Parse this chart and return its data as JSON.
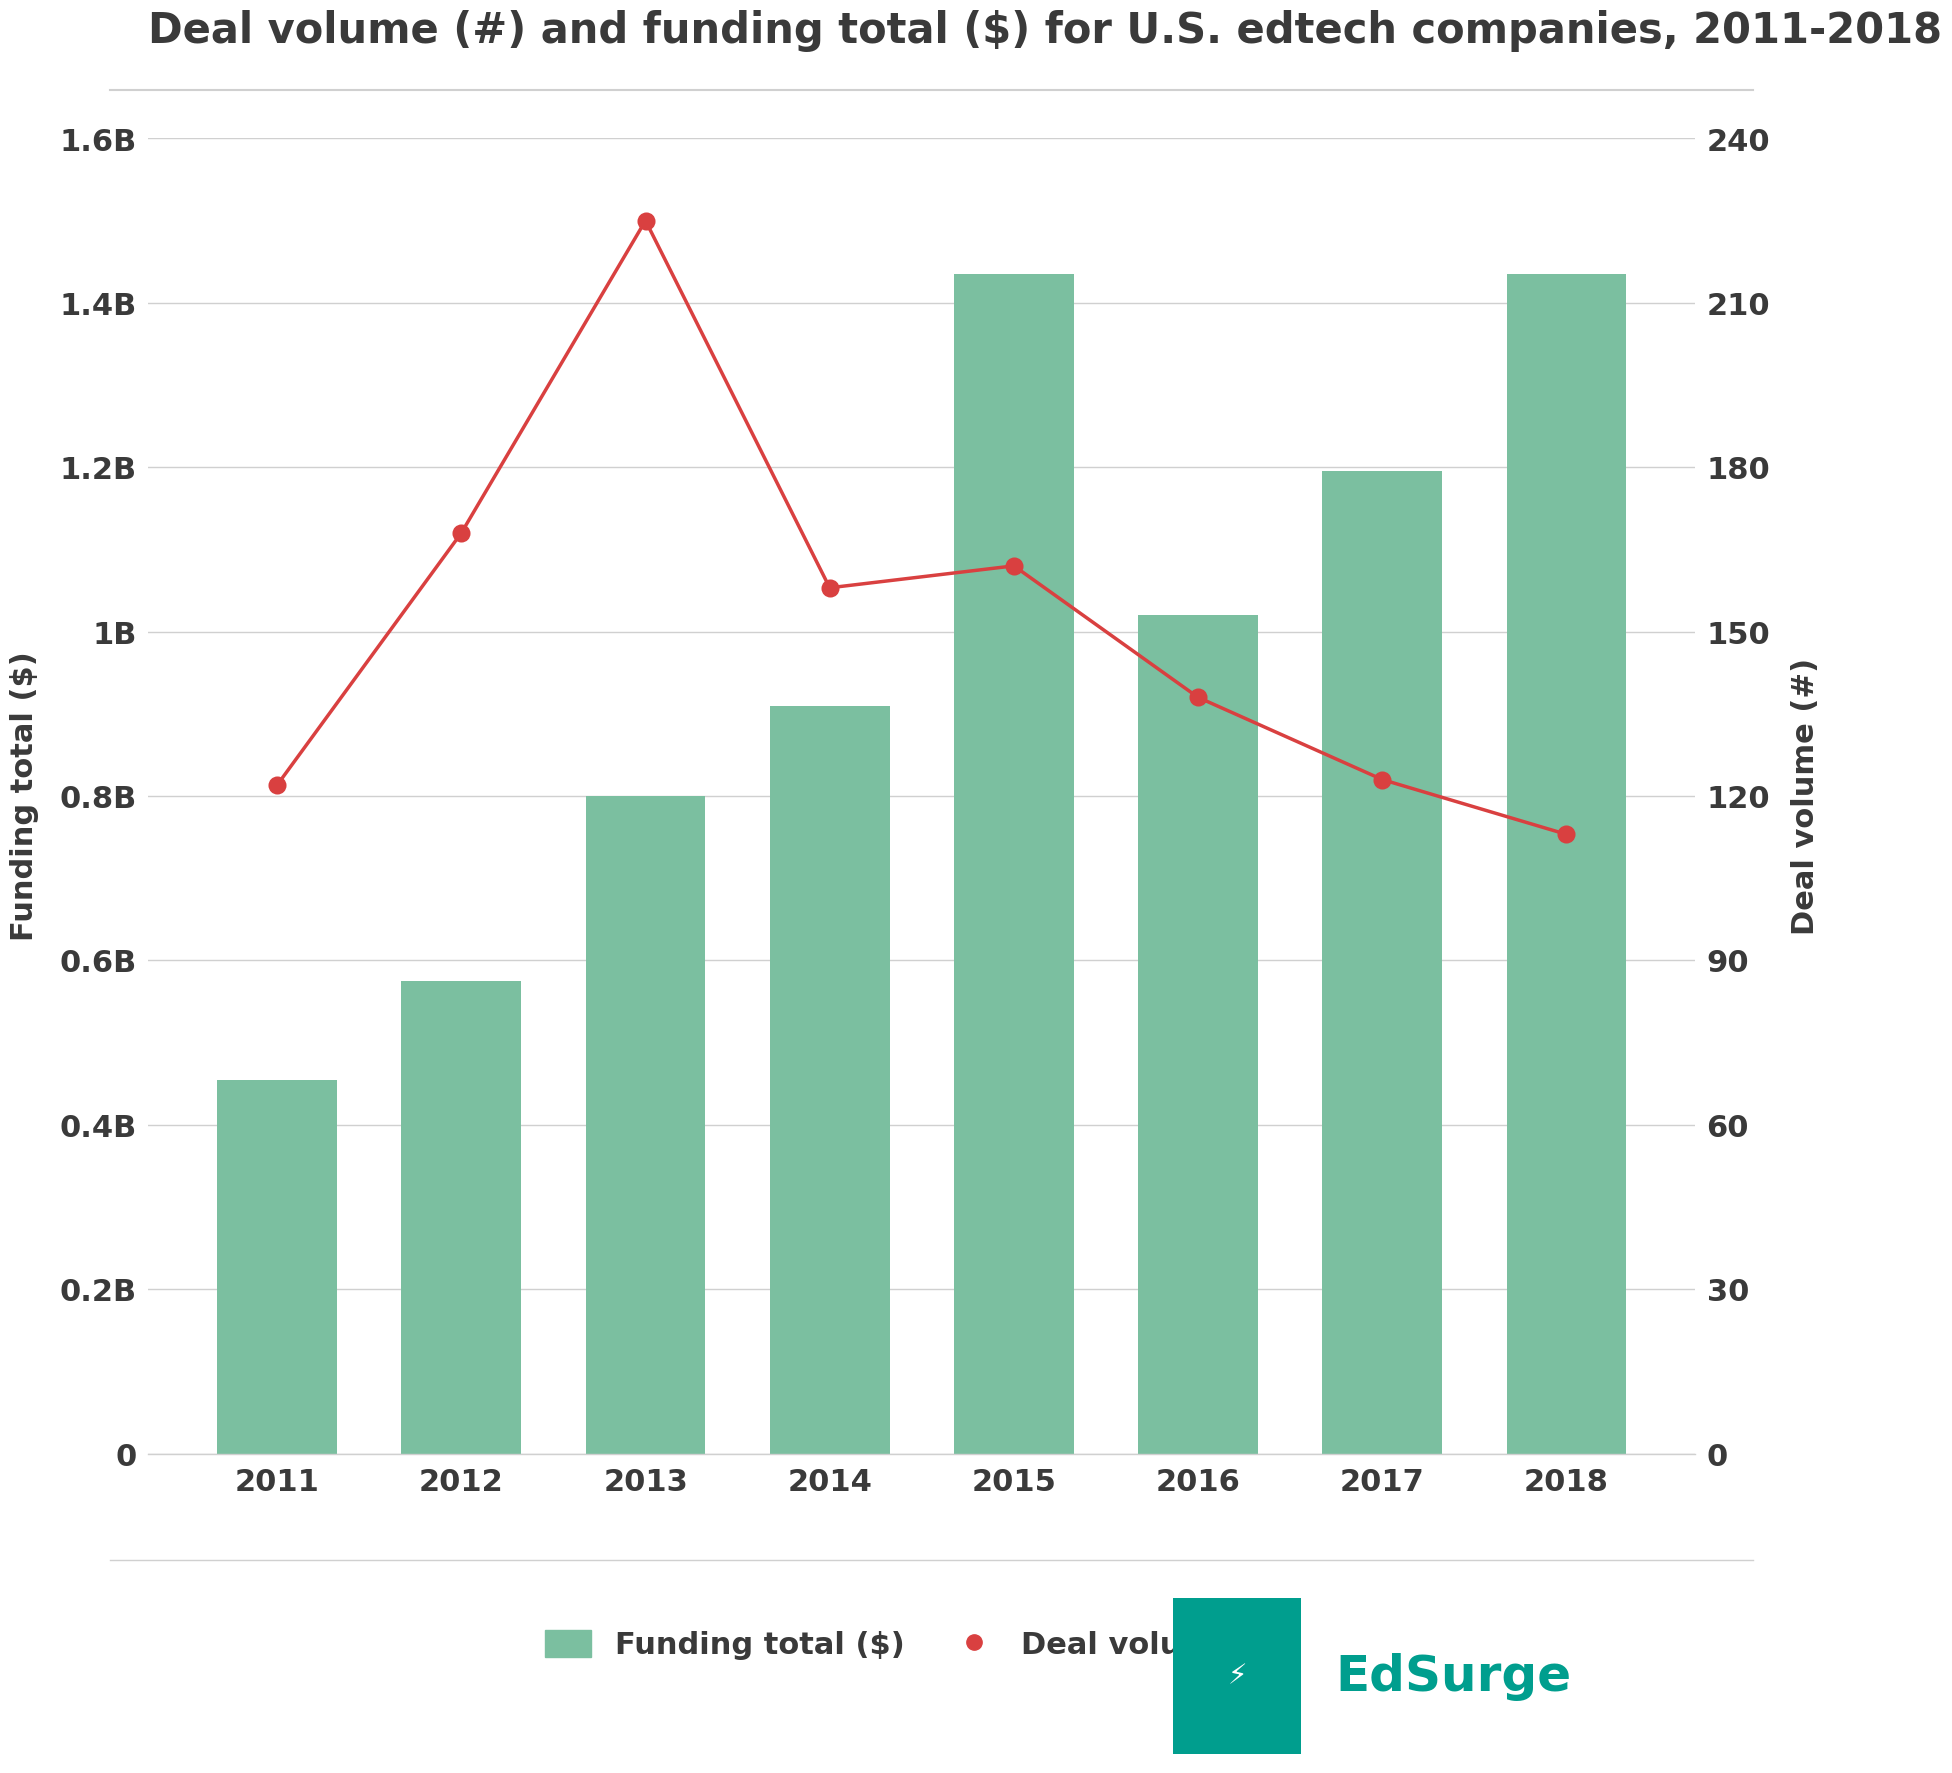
{
  "years": [
    2011,
    2012,
    2013,
    2014,
    2015,
    2016,
    2017,
    2018
  ],
  "funding_billions": [
    0.455,
    0.575,
    0.8,
    0.91,
    1.435,
    1.02,
    1.195,
    1.435
  ],
  "deal_volume": [
    122,
    168,
    225,
    158,
    162,
    138,
    123,
    113
  ],
  "bar_color": "#7bbfa0",
  "line_color": "#d94040",
  "background_color": "#ffffff",
  "title": "Deal volume (#) and funding total ($) for U.S. edtech companies, 2011-2018",
  "ylabel_left": "Funding total ($)",
  "ylabel_right": "Deal volume (#)",
  "ylim_left": [
    0,
    1.6
  ],
  "ylim_right": [
    0,
    240
  ],
  "yticks_left": [
    0,
    0.2,
    0.4,
    0.6,
    0.8,
    1.0,
    1.2,
    1.4,
    1.6
  ],
  "yticks_right": [
    0,
    30,
    60,
    90,
    120,
    150,
    180,
    210,
    240
  ],
  "ytick_labels_left": [
    "0",
    "0.2B",
    "0.4B",
    "0.6B",
    "0.8B",
    "1B",
    "1.2B",
    "1.4B",
    "1.6B"
  ],
  "ytick_labels_right": [
    "0",
    "30",
    "60",
    "90",
    "120",
    "150",
    "180",
    "210",
    "240"
  ],
  "legend_funding_label": "Funding total ($)",
  "legend_deal_label": "Deal volume (#)",
  "title_fontsize": 30,
  "axis_label_fontsize": 22,
  "tick_fontsize": 22,
  "legend_fontsize": 22,
  "grid_color": "#d0d0d0",
  "title_color": "#3a3a3a",
  "tick_color": "#3a3a3a",
  "axis_label_color": "#3a3a3a",
  "edsurge_teal": "#009e8e",
  "edsurge_text_color": "#009e8e"
}
